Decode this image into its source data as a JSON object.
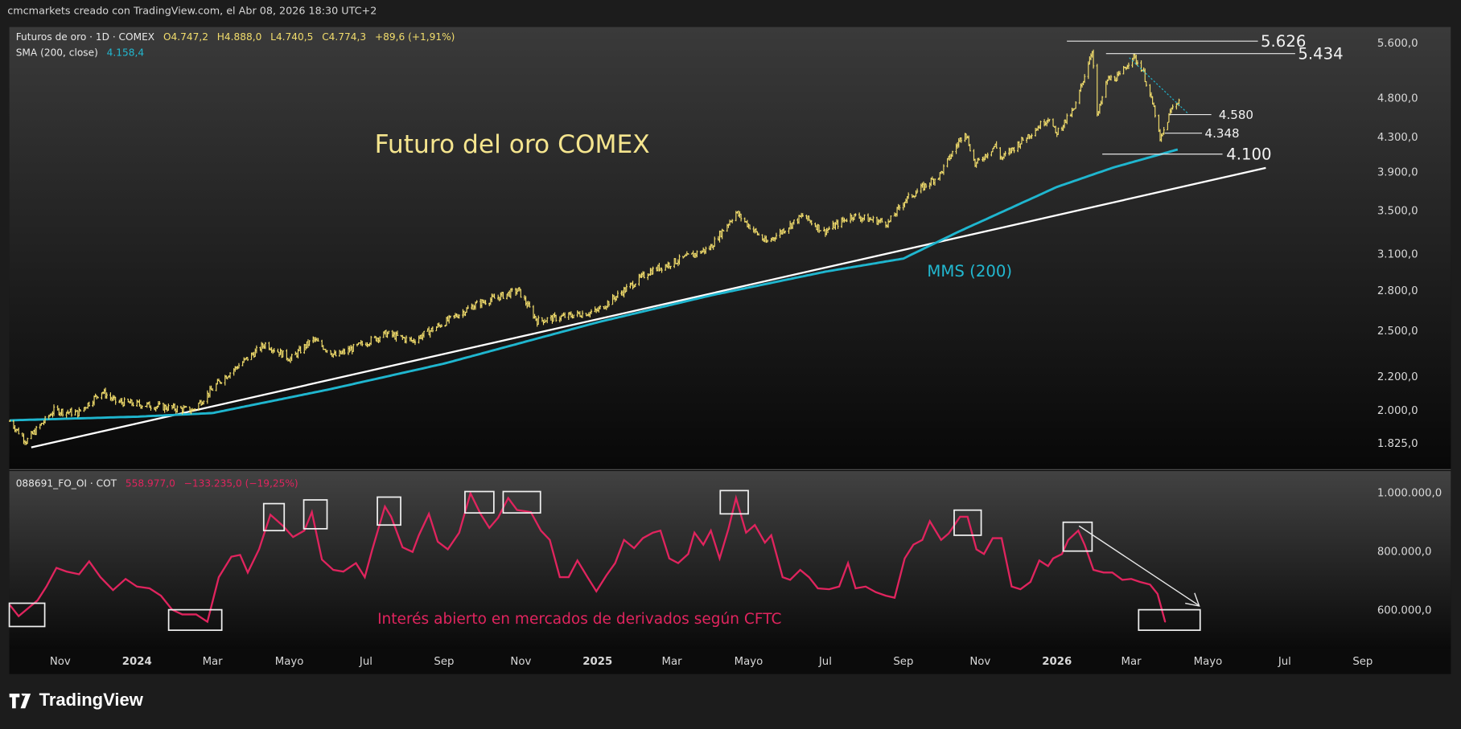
{
  "header": {
    "attribution": "cmcmarkets creado con TradingView.com, el Abr 08, 2026 18:30 UTC+2"
  },
  "legend": {
    "symbol": "Futuros de oro · 1D · COMEX",
    "open": "O4.747,2",
    "high": "H4.888,0",
    "low": "L4.740,5",
    "close": "C4.774,3",
    "change": "+89,6 (+1,91%)",
    "sma_label": "SMA (200, close)",
    "sma_value": "4.158,4"
  },
  "indicator_legend": {
    "symbol": "088691_FO_OI · COT",
    "value": "558.977,0",
    "change": "−133.235,0 (−19,25%)"
  },
  "annotations": {
    "title": "Futuro del oro COMEX",
    "sma": "MMS (200)",
    "oi": "Interés abierto en mercados de derivados según CFTC"
  },
  "levels": [
    {
      "price": 5626,
      "label": "5.626"
    },
    {
      "price": 5434,
      "label": "5.434"
    },
    {
      "price": 4580,
      "label": "4.580"
    },
    {
      "price": 4348,
      "label": "4.348"
    },
    {
      "price": 4100,
      "label": "4.100"
    }
  ],
  "colors": {
    "bars": "#f2dd6c",
    "sma": "#1fb6cf",
    "oi": "#e0245e",
    "trend": "#ffffff"
  },
  "logo": "TradingView",
  "chart_data": [
    {
      "type": "bar",
      "title": "Futuros de oro · 1D · COMEX",
      "scale": "log",
      "y_ticks": [
        {
          "v": 5600,
          "l": "5.600,0"
        },
        {
          "v": 4800,
          "l": "4.800,0"
        },
        {
          "v": 4300,
          "l": "4.300,0"
        },
        {
          "v": 3900,
          "l": "3.900,0"
        },
        {
          "v": 3500,
          "l": "3.500,0"
        },
        {
          "v": 3100,
          "l": "3.100,0"
        },
        {
          "v": 2800,
          "l": "2.800,0"
        },
        {
          "v": 2500,
          "l": "2.500,0"
        },
        {
          "v": 2200,
          "l": "2.200,0"
        },
        {
          "v": 2000,
          "l": "2.000,0"
        },
        {
          "v": 1825,
          "l": "1.825,0"
        }
      ],
      "x_ticks": [
        {
          "d": "2023-11-01",
          "l": "Nov"
        },
        {
          "d": "2024-01-01",
          "l": "2024"
        },
        {
          "d": "2024-03-01",
          "l": "Mar"
        },
        {
          "d": "2024-05-01",
          "l": "Mayo"
        },
        {
          "d": "2024-07-01",
          "l": "Jul"
        },
        {
          "d": "2024-09-01",
          "l": "Sep"
        },
        {
          "d": "2024-11-01",
          "l": "Nov"
        },
        {
          "d": "2025-01-01",
          "l": "2025"
        },
        {
          "d": "2025-03-01",
          "l": "Mar"
        },
        {
          "d": "2025-05-01",
          "l": "Mayo"
        },
        {
          "d": "2025-07-01",
          "l": "Jul"
        },
        {
          "d": "2025-09-01",
          "l": "Sep"
        },
        {
          "d": "2025-11-01",
          "l": "Nov"
        },
        {
          "d": "2026-01-01",
          "l": "2026"
        },
        {
          "d": "2026-03-01",
          "l": "Mar"
        },
        {
          "d": "2026-05-01",
          "l": "Mayo"
        },
        {
          "d": "2026-07-01",
          "l": "Jul"
        },
        {
          "d": "2026-09-01",
          "l": "Sep"
        }
      ],
      "price_path": [
        [
          "2023-09-22",
          1940
        ],
        [
          "2023-10-05",
          1835
        ],
        [
          "2023-10-27",
          2000
        ],
        [
          "2023-11-15",
          1985
        ],
        [
          "2023-12-04",
          2110
        ],
        [
          "2023-12-15",
          2050
        ],
        [
          "2024-02-14",
          2000
        ],
        [
          "2024-03-08",
          2180
        ],
        [
          "2024-04-12",
          2410
        ],
        [
          "2024-05-02",
          2310
        ],
        [
          "2024-05-20",
          2440
        ],
        [
          "2024-06-07",
          2330
        ],
        [
          "2024-07-17",
          2480
        ],
        [
          "2024-08-07",
          2430
        ],
        [
          "2024-09-26",
          2690
        ],
        [
          "2024-10-30",
          2800
        ],
        [
          "2024-11-14",
          2570
        ],
        [
          "2024-12-31",
          2640
        ],
        [
          "2025-02-11",
          2950
        ],
        [
          "2025-03-31",
          3150
        ],
        [
          "2025-04-21",
          3480
        ],
        [
          "2025-05-15",
          3200
        ],
        [
          "2025-06-13",
          3450
        ],
        [
          "2025-06-30",
          3300
        ],
        [
          "2025-07-22",
          3450
        ],
        [
          "2025-08-20",
          3380
        ],
        [
          "2025-09-02",
          3600
        ],
        [
          "2025-09-30",
          3870
        ],
        [
          "2025-10-20",
          4380
        ],
        [
          "2025-10-28",
          3980
        ],
        [
          "2025-11-13",
          4200
        ],
        [
          "2025-11-18",
          4050
        ],
        [
          "2025-12-26",
          4550
        ],
        [
          "2025-12-31",
          4340
        ],
        [
          "2026-01-15",
          4650
        ],
        [
          "2026-01-29",
          5500
        ],
        [
          "2026-02-02",
          4550
        ],
        [
          "2026-02-10",
          5050
        ],
        [
          "2026-02-20",
          5100
        ],
        [
          "2026-03-02",
          5400
        ],
        [
          "2026-03-10",
          5200
        ],
        [
          "2026-03-20",
          4600
        ],
        [
          "2026-03-24",
          4250
        ],
        [
          "2026-04-02",
          4650
        ],
        [
          "2026-04-08",
          4774
        ]
      ],
      "sma_200": [
        [
          "2023-09-22",
          1945
        ],
        [
          "2024-01-01",
          1965
        ],
        [
          "2024-03-01",
          1985
        ],
        [
          "2024-06-01",
          2120
        ],
        [
          "2024-09-01",
          2280
        ],
        [
          "2025-01-01",
          2560
        ],
        [
          "2025-04-01",
          2760
        ],
        [
          "2025-07-01",
          2950
        ],
        [
          "2025-09-01",
          3060
        ],
        [
          "2025-10-15",
          3300
        ],
        [
          "2026-01-01",
          3740
        ],
        [
          "2026-02-15",
          3950
        ],
        [
          "2026-04-08",
          4158
        ]
      ],
      "trendline": [
        [
          "2023-10-09",
          1803
        ],
        [
          "2026-06-16",
          3945
        ]
      ]
    },
    {
      "type": "line",
      "title": "088691_FO_OI · COT",
      "y_ticks": [
        {
          "v": 1000000,
          "l": "1.000.000,0"
        },
        {
          "v": 800000,
          "l": "800.000,0"
        },
        {
          "v": 600000,
          "l": "600.000,0"
        }
      ],
      "points": [
        [
          "2023-09-22",
          616000
        ],
        [
          "2023-09-29",
          578000
        ],
        [
          "2023-10-14",
          632000
        ],
        [
          "2023-10-21",
          679000
        ],
        [
          "2023-10-29",
          743000
        ],
        [
          "2023-11-06",
          730000
        ],
        [
          "2023-11-16",
          721000
        ],
        [
          "2023-11-24",
          765000
        ],
        [
          "2023-12-03",
          711000
        ],
        [
          "2023-12-13",
          667000
        ],
        [
          "2023-12-23",
          705000
        ],
        [
          "2024-01-01",
          679000
        ],
        [
          "2024-01-11",
          673000
        ],
        [
          "2024-01-20",
          648000
        ],
        [
          "2024-01-29",
          600000
        ],
        [
          "2024-02-06",
          584000
        ],
        [
          "2024-02-17",
          584000
        ],
        [
          "2024-02-26",
          559000
        ],
        [
          "2024-03-06",
          711000
        ],
        [
          "2024-03-16",
          781000
        ],
        [
          "2024-03-23",
          787000
        ],
        [
          "2024-03-29",
          727000
        ],
        [
          "2024-04-07",
          806000
        ],
        [
          "2024-04-16",
          924000
        ],
        [
          "2024-04-26",
          886000
        ],
        [
          "2024-05-04",
          848000
        ],
        [
          "2024-05-13",
          870000
        ],
        [
          "2024-05-19",
          933000
        ],
        [
          "2024-05-27",
          771000
        ],
        [
          "2024-06-05",
          736000
        ],
        [
          "2024-06-13",
          730000
        ],
        [
          "2024-06-23",
          759000
        ],
        [
          "2024-06-30",
          711000
        ],
        [
          "2024-07-06",
          806000
        ],
        [
          "2024-07-16",
          952000
        ],
        [
          "2024-07-21",
          917000
        ],
        [
          "2024-07-30",
          813000
        ],
        [
          "2024-08-07",
          797000
        ],
        [
          "2024-08-12",
          854000
        ],
        [
          "2024-08-20",
          927000
        ],
        [
          "2024-08-27",
          832000
        ],
        [
          "2024-09-04",
          806000
        ],
        [
          "2024-09-13",
          863000
        ],
        [
          "2024-09-22",
          997000
        ],
        [
          "2024-09-30",
          927000
        ],
        [
          "2024-10-07",
          879000
        ],
        [
          "2024-10-14",
          914000
        ],
        [
          "2024-10-22",
          981000
        ],
        [
          "2024-10-29",
          940000
        ],
        [
          "2024-11-09",
          933000
        ],
        [
          "2024-11-17",
          870000
        ],
        [
          "2024-11-24",
          838000
        ],
        [
          "2024-12-02",
          711000
        ],
        [
          "2024-12-09",
          711000
        ],
        [
          "2024-12-16",
          768000
        ],
        [
          "2024-12-24",
          711000
        ],
        [
          "2024-12-31",
          663000
        ],
        [
          "2025-01-08",
          717000
        ],
        [
          "2025-01-15",
          759000
        ],
        [
          "2025-01-22",
          838000
        ],
        [
          "2025-01-30",
          810000
        ],
        [
          "2025-02-06",
          844000
        ],
        [
          "2025-02-14",
          863000
        ],
        [
          "2025-02-20",
          870000
        ],
        [
          "2025-02-27",
          775000
        ],
        [
          "2025-03-06",
          759000
        ],
        [
          "2025-03-14",
          790000
        ],
        [
          "2025-03-19",
          863000
        ],
        [
          "2025-03-26",
          822000
        ],
        [
          "2025-04-01",
          870000
        ],
        [
          "2025-04-08",
          775000
        ],
        [
          "2025-04-15",
          876000
        ],
        [
          "2025-04-21",
          981000
        ],
        [
          "2025-04-29",
          863000
        ],
        [
          "2025-05-06",
          889000
        ],
        [
          "2025-05-14",
          829000
        ],
        [
          "2025-05-19",
          854000
        ],
        [
          "2025-05-28",
          711000
        ],
        [
          "2025-06-03",
          702000
        ],
        [
          "2025-06-11",
          736000
        ],
        [
          "2025-06-18",
          711000
        ],
        [
          "2025-06-25",
          673000
        ],
        [
          "2025-07-04",
          670000
        ],
        [
          "2025-07-12",
          679000
        ],
        [
          "2025-07-19",
          759000
        ],
        [
          "2025-07-25",
          673000
        ],
        [
          "2025-08-02",
          679000
        ],
        [
          "2025-08-10",
          660000
        ],
        [
          "2025-08-18",
          648000
        ],
        [
          "2025-08-25",
          641000
        ],
        [
          "2025-09-02",
          775000
        ],
        [
          "2025-09-09",
          822000
        ],
        [
          "2025-09-16",
          838000
        ],
        [
          "2025-09-22",
          902000
        ],
        [
          "2025-10-01",
          838000
        ],
        [
          "2025-10-07",
          860000
        ],
        [
          "2025-10-16",
          917000
        ],
        [
          "2025-10-22",
          917000
        ],
        [
          "2025-10-29",
          806000
        ],
        [
          "2025-11-04",
          790000
        ],
        [
          "2025-11-11",
          844000
        ],
        [
          "2025-11-18",
          844000
        ],
        [
          "2025-11-26",
          679000
        ],
        [
          "2025-12-03",
          670000
        ],
        [
          "2025-12-11",
          695000
        ],
        [
          "2025-12-18",
          768000
        ],
        [
          "2025-12-25",
          749000
        ],
        [
          "2025-12-29",
          775000
        ],
        [
          "2026-01-05",
          790000
        ],
        [
          "2026-01-10",
          838000
        ],
        [
          "2026-01-18",
          870000
        ],
        [
          "2026-01-23",
          822000
        ],
        [
          "2026-01-30",
          736000
        ],
        [
          "2026-02-07",
          727000
        ],
        [
          "2026-02-14",
          727000
        ],
        [
          "2026-02-22",
          702000
        ],
        [
          "2026-03-01",
          705000
        ],
        [
          "2026-03-08",
          695000
        ],
        [
          "2026-03-16",
          686000
        ],
        [
          "2026-03-22",
          654000
        ],
        [
          "2026-03-28",
          559000
        ]
      ]
    }
  ]
}
